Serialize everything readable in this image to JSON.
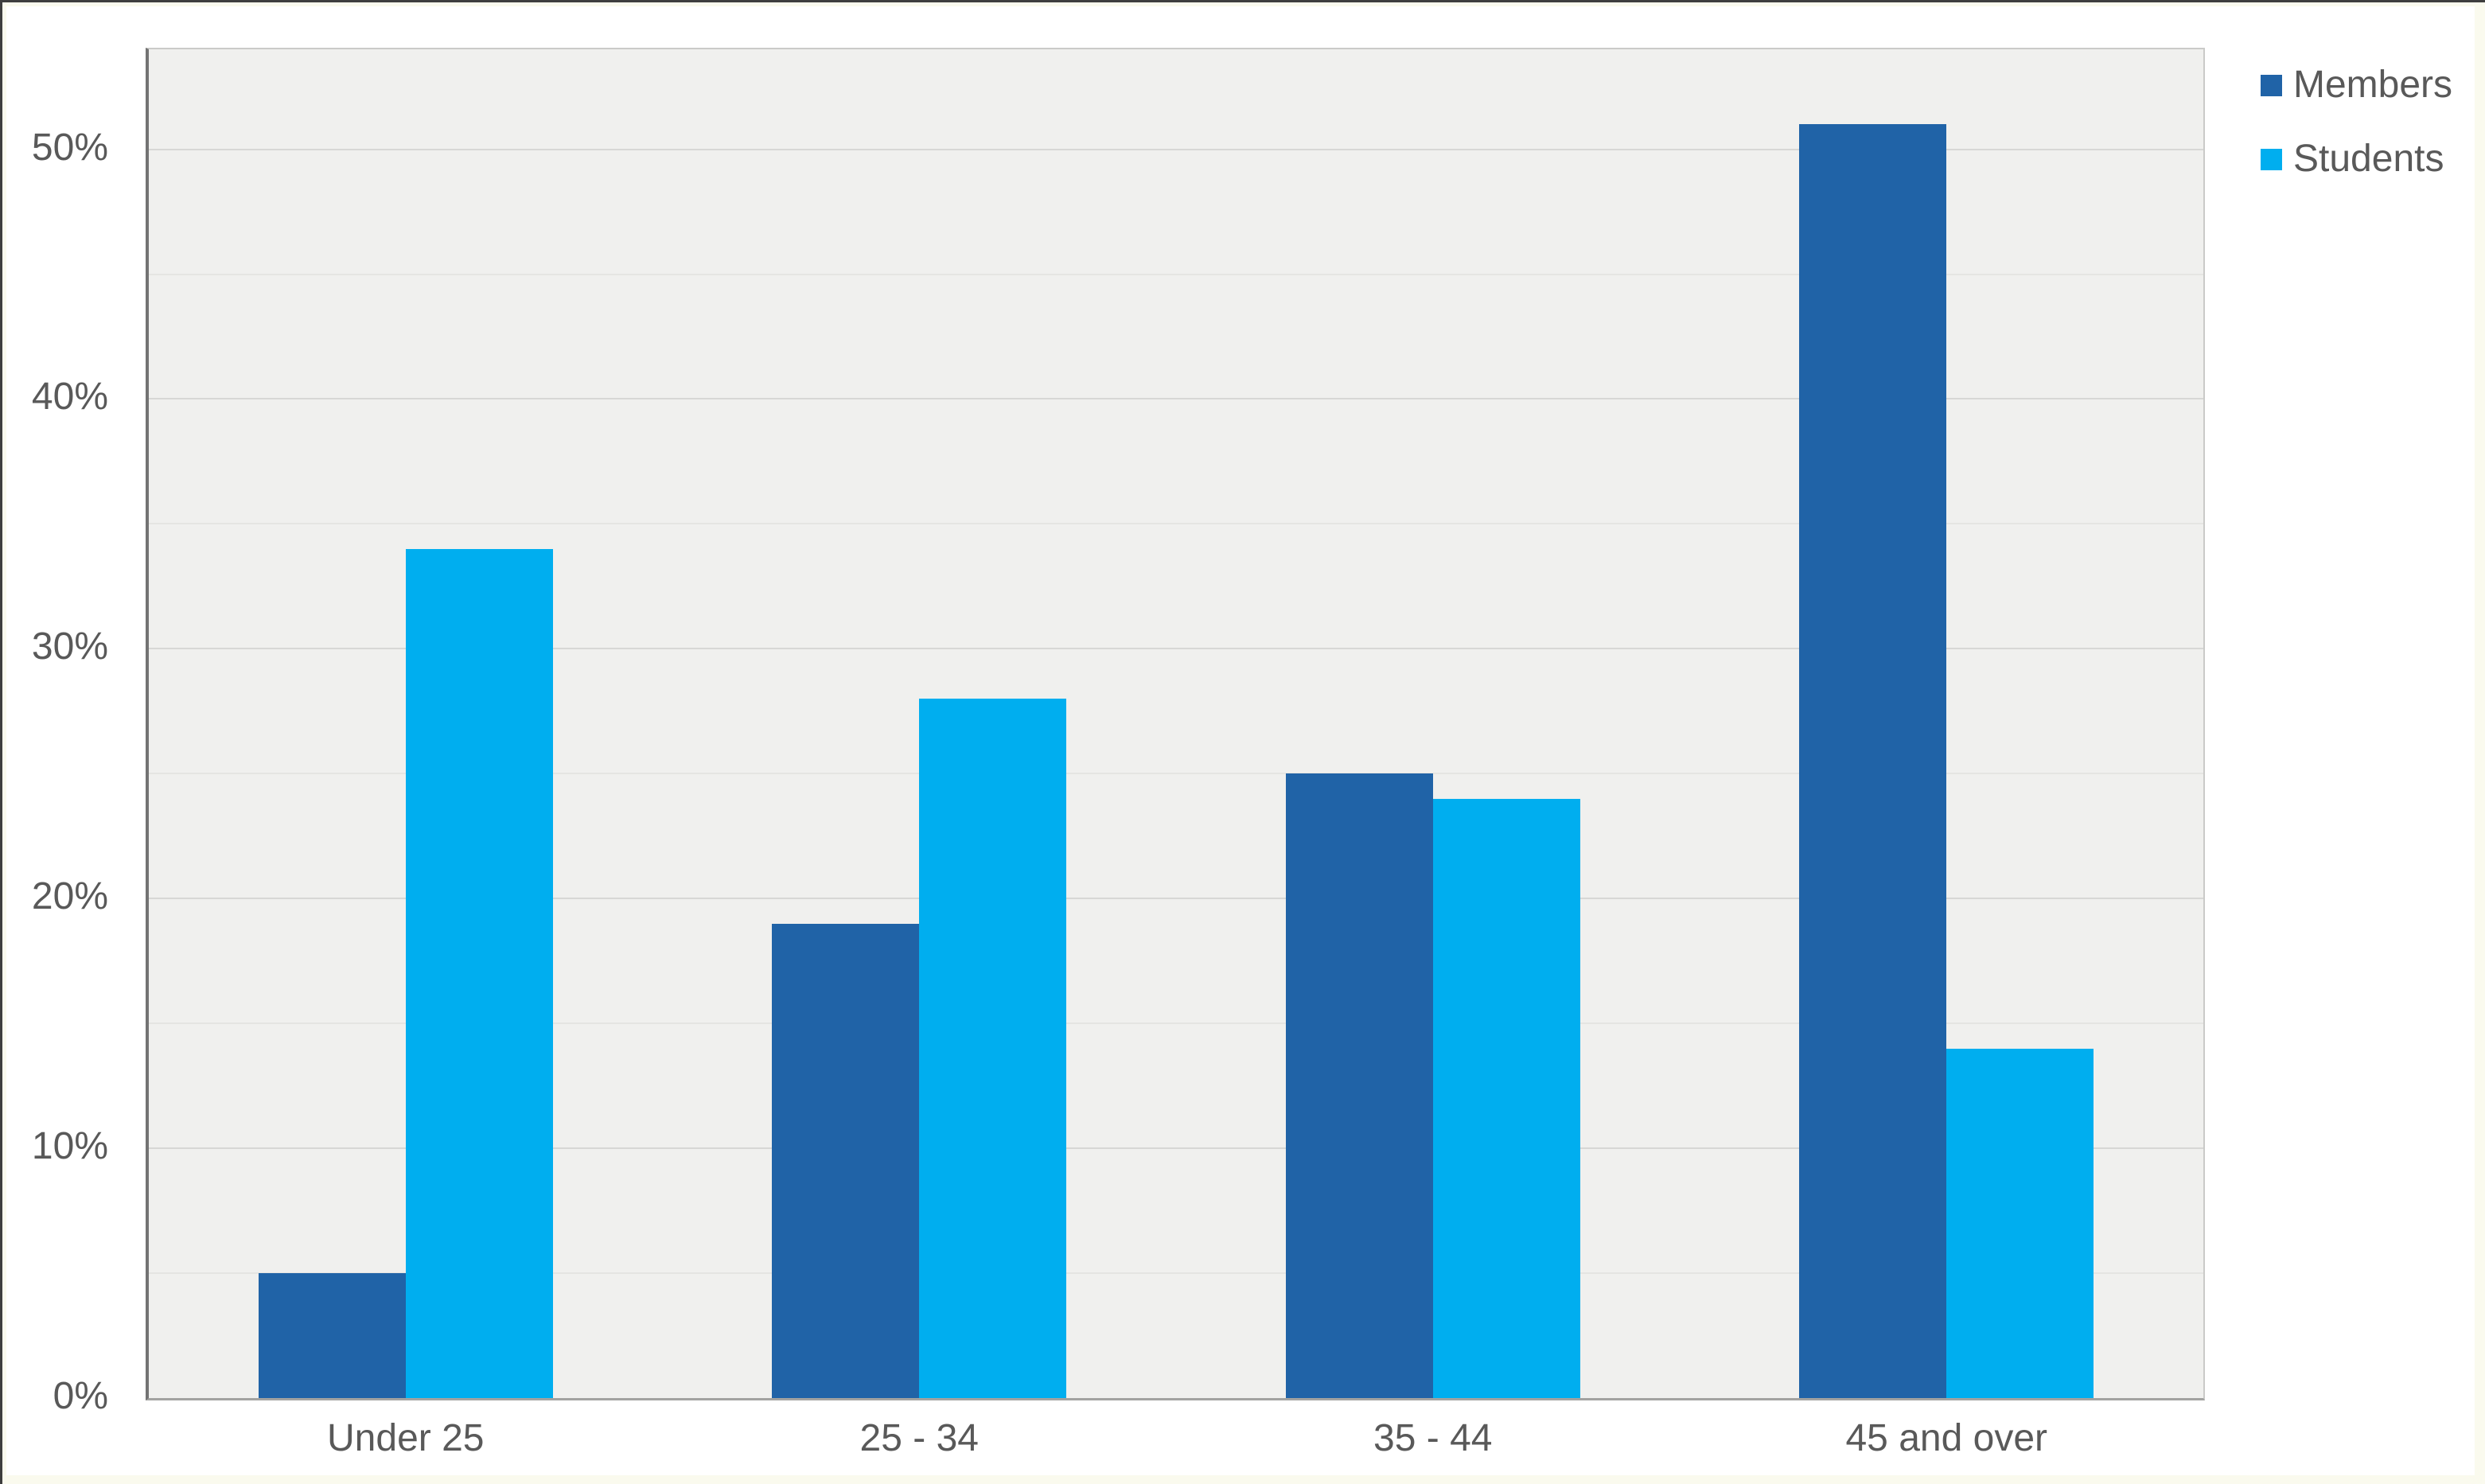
{
  "chart_data": {
    "type": "bar",
    "title": "",
    "xlabel": "",
    "ylabel": "",
    "categories": [
      "Under 25",
      "25 - 34",
      "35 - 44",
      "45 and over"
    ],
    "series": [
      {
        "name": "Members",
        "color": "#2063A7",
        "values": [
          5,
          19,
          25,
          51
        ]
      },
      {
        "name": "Students",
        "color": "#00AEEF",
        "values": [
          34,
          28,
          24,
          14
        ]
      }
    ],
    "y_ticks": [
      {
        "label": "0%",
        "value": 0
      },
      {
        "label": "10%",
        "value": 10
      },
      {
        "label": "20%",
        "value": 20
      },
      {
        "label": "30%",
        "value": 30
      },
      {
        "label": "40%",
        "value": 40
      },
      {
        "label": "50%",
        "value": 50
      }
    ],
    "minor_grid_values": [
      5,
      15,
      25,
      35,
      45
    ],
    "ylim": [
      0,
      54
    ],
    "grid": "horizontal major every 10%, faint minor every 5%",
    "legend_position": "outside top-right"
  },
  "colors": {
    "members": "#2063A7",
    "students": "#00AEEF",
    "text": "#595959",
    "plot_background": "#F0F0EE",
    "grid_major": "#D7D7D5",
    "grid_minor": "#E5E5E2",
    "axis_line": "#737373",
    "canvas": "#FFFFFF",
    "page_margin": "#FAFAEE"
  }
}
